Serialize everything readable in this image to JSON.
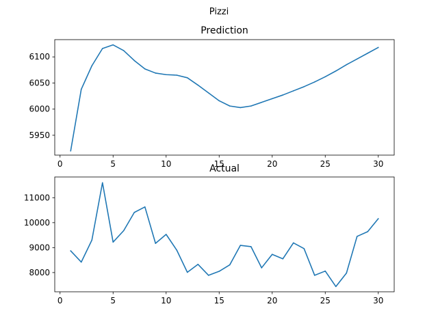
{
  "figure": {
    "suptitle": "Pizzi"
  },
  "colors": {
    "line": "#1f77b4",
    "axes": "#000000",
    "background": "#ffffff"
  },
  "chart_data": [
    {
      "type": "line",
      "title": "Prediction",
      "xlabel": "",
      "ylabel": "",
      "grid": false,
      "xlim": [
        -0.5,
        31.5
      ],
      "ylim": [
        5912,
        6133
      ],
      "xticks": [
        0,
        5,
        10,
        15,
        20,
        25,
        30
      ],
      "yticks": [
        5950,
        6000,
        6050,
        6100
      ],
      "x": [
        1,
        2,
        3,
        4,
        5,
        6,
        7,
        8,
        9,
        10,
        11,
        12,
        13,
        14,
        15,
        16,
        17,
        18,
        19,
        20,
        21,
        22,
        23,
        24,
        25,
        26,
        27,
        28,
        29,
        30
      ],
      "series": [
        {
          "values": [
            5920,
            6038,
            6083,
            6116,
            6123,
            6112,
            6093,
            6077,
            6069,
            6066,
            6065,
            6060,
            6046,
            6031,
            6016,
            6006,
            6003,
            6006,
            6013,
            6020,
            6027,
            6035,
            6043,
            6052,
            6062,
            6073,
            6085,
            6096,
            6107,
            6118
          ]
        }
      ]
    },
    {
      "type": "line",
      "title": "Actual",
      "xlabel": "",
      "ylabel": "",
      "grid": false,
      "xlim": [
        -0.5,
        31.5
      ],
      "ylim": [
        7230,
        11830
      ],
      "xticks": [
        0,
        5,
        10,
        15,
        20,
        25,
        30
      ],
      "yticks": [
        8000,
        9000,
        10000,
        11000
      ],
      "x": [
        1,
        2,
        3,
        4,
        5,
        6,
        7,
        8,
        9,
        10,
        11,
        12,
        13,
        14,
        15,
        16,
        17,
        18,
        19,
        20,
        21,
        22,
        23,
        24,
        25,
        26,
        27,
        28,
        29,
        30
      ],
      "series": [
        {
          "values": [
            8870,
            8420,
            9300,
            11600,
            9220,
            9680,
            10410,
            10630,
            9170,
            9530,
            8900,
            8010,
            8330,
            7890,
            8050,
            8310,
            9090,
            9040,
            8190,
            8730,
            8550,
            9190,
            8960,
            7890,
            8060,
            7440,
            7980,
            9450,
            9640,
            10160
          ]
        }
      ]
    }
  ]
}
